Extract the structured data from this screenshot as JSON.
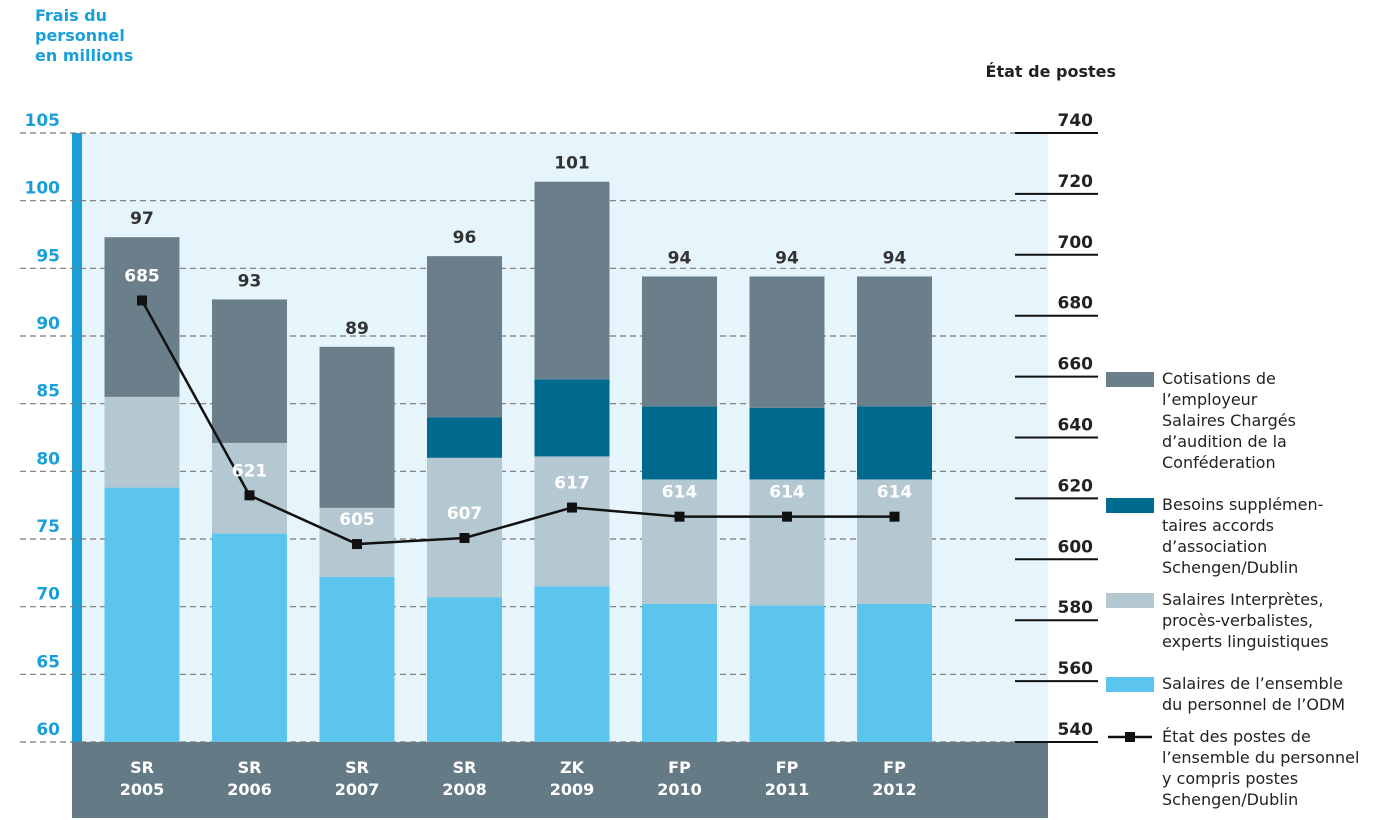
{
  "chart_data": {
    "type": "bar",
    "stacked": true,
    "ylabel": "Frais du\npersonnel\nen millions",
    "y2label": "État de postes",
    "categories": [
      "SR\n2005",
      "SR\n2006",
      "SR\n2007",
      "SR\n2008",
      "ZK\n2009",
      "FP\n2010",
      "FP\n2011",
      "FP\n2012"
    ],
    "ylim": [
      60,
      105
    ],
    "yticks": [
      60,
      65,
      70,
      75,
      80,
      85,
      90,
      95,
      100,
      105
    ],
    "y2lim": [
      540,
      740
    ],
    "y2ticks": [
      540,
      560,
      580,
      600,
      620,
      640,
      660,
      680,
      700,
      720,
      740
    ],
    "grid": true,
    "series": [
      {
        "name": "Salaires de l’ensemble\ndu personnel de l’ODM",
        "color": "#5bc5ed",
        "values": [
          78.8,
          75.4,
          72.2,
          70.7,
          71.5,
          70.2,
          70.1,
          70.2
        ]
      },
      {
        "name": "Salaires Interprètes,\nprocès-verbalistes,\nexperts linguistiques",
        "color": "#b4c8d2",
        "values": [
          6.7,
          6.7,
          5.1,
          10.3,
          9.6,
          9.2,
          9.3,
          9.2
        ]
      },
      {
        "name": "Besoins supplémen-\ntaires accords\nd’association\nSchengen/Dublin",
        "color": "#006a8e",
        "values": [
          0,
          0,
          0,
          3.0,
          5.7,
          5.4,
          5.3,
          5.4
        ]
      },
      {
        "name": "Cotisations de\nl’employeur\nSalaires Chargés\nd’audition de la\nConféderation",
        "color": "#6a7f8a",
        "values": [
          11.8,
          10.6,
          11.9,
          11.9,
          14.6,
          9.6,
          9.7,
          9.6
        ]
      },
      {
        "name": "État des postes de\nl’ensemble du personnel\ny compris postes\nSchengen/Dublin",
        "type": "line",
        "axis": "y2",
        "color": "#111111",
        "values": [
          685,
          621,
          605,
          607,
          617,
          614,
          614,
          614
        ]
      }
    ],
    "totals": [
      97,
      93,
      89,
      96,
      101,
      94,
      94,
      94
    ]
  }
}
